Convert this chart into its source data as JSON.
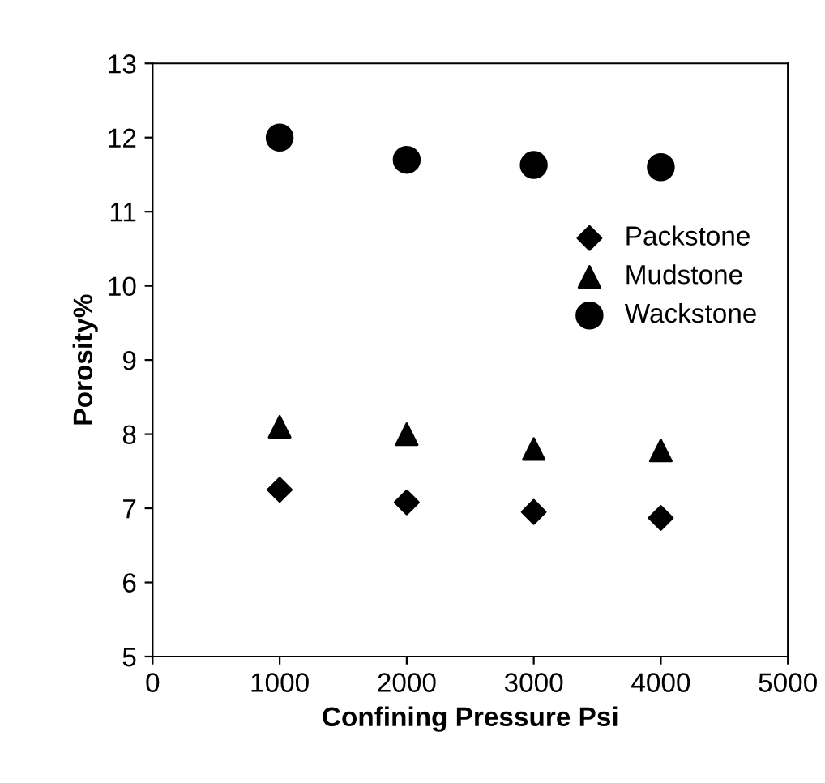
{
  "chart_data": {
    "type": "scatter",
    "xlabel": "Confining Pressure Psi",
    "ylabel": "Porosity%",
    "x": [
      1000,
      2000,
      3000,
      4000
    ],
    "series": [
      {
        "name": "Packstone",
        "color": "#000000",
        "marker": "diamond",
        "values": [
          7.25,
          7.08,
          6.95,
          6.87
        ]
      },
      {
        "name": "Mudstone",
        "color": "#000000",
        "marker": "triangle",
        "values": [
          8.1,
          8.0,
          7.8,
          7.78
        ]
      },
      {
        "name": "Wackstone",
        "color": "#000000",
        "marker": "circle",
        "values": [
          12.0,
          11.7,
          11.63,
          11.6
        ]
      }
    ],
    "xlim": [
      0,
      5000
    ],
    "xticks": [
      0,
      1000,
      2000,
      3000,
      4000,
      5000
    ],
    "ylim": [
      5,
      13
    ],
    "yticks": [
      5,
      6,
      7,
      8,
      9,
      10,
      11,
      12,
      13
    ],
    "legend": "right",
    "grid": false
  }
}
